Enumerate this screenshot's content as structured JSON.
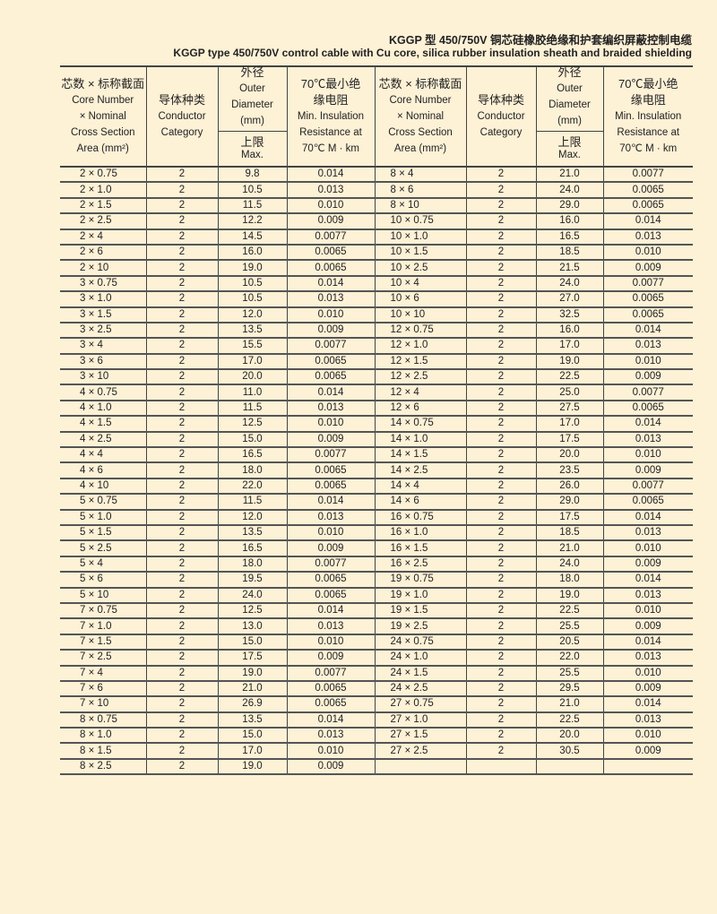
{
  "title_cn": "KGGP 型 450/750V 铜芯硅橡胶绝缘和护套编织屏蔽控制电缆",
  "title_en": "KGGP type 450/750V control cable with Cu core, silica rubber insulation sheath and braided shielding",
  "header": {
    "spec_cn": "芯数 × 标称截面",
    "spec_en_1": "Core Number",
    "spec_en_2": "× Nominal",
    "spec_en_3": "Cross Section",
    "spec_en_4": "Area (mm²)",
    "conductor_cn": "导体种类",
    "conductor_en_1": "Conductor",
    "conductor_en_2": "Category",
    "dia_cn": "外径",
    "dia_en_1": "Outer",
    "dia_en_2": "Diameter",
    "dia_unit": "(mm)",
    "dia_max_cn": "上限",
    "dia_max_en": "Max.",
    "res_cn_1": "70℃最小绝",
    "res_cn_2": "缘电阻",
    "res_en_1": "Min. Insulation",
    "res_en_2": "Resistance at",
    "res_en_3": "70℃  M  · km"
  },
  "rows": [
    [
      "2 × 0.75",
      "2",
      "9.8",
      "0.014",
      "8 × 4",
      "2",
      "21.0",
      "0.0077"
    ],
    [
      "2 × 1.0",
      "2",
      "10.5",
      "0.013",
      "8 × 6",
      "2",
      "24.0",
      "0.0065"
    ],
    [
      "2 × 1.5",
      "2",
      "11.5",
      "0.010",
      "8 × 10",
      "2",
      "29.0",
      "0.0065"
    ],
    [
      "2 × 2.5",
      "2",
      "12.2",
      "0.009",
      "10 × 0.75",
      "2",
      "16.0",
      "0.014"
    ],
    [
      "2 × 4",
      "2",
      "14.5",
      "0.0077",
      "10 × 1.0",
      "2",
      "16.5",
      "0.013"
    ],
    [
      "2 × 6",
      "2",
      "16.0",
      "0.0065",
      "10 × 1.5",
      "2",
      "18.5",
      "0.010"
    ],
    [
      "2 × 10",
      "2",
      "19.0",
      "0.0065",
      "10 × 2.5",
      "2",
      "21.5",
      "0.009"
    ],
    [
      "3 × 0.75",
      "2",
      "10.5",
      "0.014",
      "10 × 4",
      "2",
      "24.0",
      "0.0077"
    ],
    [
      "3 × 1.0",
      "2",
      "10.5",
      "0.013",
      "10 × 6",
      "2",
      "27.0",
      "0.0065"
    ],
    [
      "3 × 1.5",
      "2",
      "12.0",
      "0.010",
      "10 × 10",
      "2",
      "32.5",
      "0.0065"
    ],
    [
      "3 × 2.5",
      "2",
      "13.5",
      "0.009",
      "12 × 0.75",
      "2",
      "16.0",
      "0.014"
    ],
    [
      "3 × 4",
      "2",
      "15.5",
      "0.0077",
      "12 × 1.0",
      "2",
      "17.0",
      "0.013"
    ],
    [
      "3 × 6",
      "2",
      "17.0",
      "0.0065",
      "12 × 1.5",
      "2",
      "19.0",
      "0.010"
    ],
    [
      "3 × 10",
      "2",
      "20.0",
      "0.0065",
      "12 × 2.5",
      "2",
      "22.5",
      "0.009"
    ],
    [
      "4 × 0.75",
      "2",
      "11.0",
      "0.014",
      "12 × 4",
      "2",
      "25.0",
      "0.0077"
    ],
    [
      "4 × 1.0",
      "2",
      "11.5",
      "0.013",
      "12 × 6",
      "2",
      "27.5",
      "0.0065"
    ],
    [
      "4 × 1.5",
      "2",
      "12.5",
      "0.010",
      "14 × 0.75",
      "2",
      "17.0",
      "0.014"
    ],
    [
      "4 × 2.5",
      "2",
      "15.0",
      "0.009",
      "14 × 1.0",
      "2",
      "17.5",
      "0.013"
    ],
    [
      "4 × 4",
      "2",
      "16.5",
      "0.0077",
      "14 × 1.5",
      "2",
      "20.0",
      "0.010"
    ],
    [
      "4 × 6",
      "2",
      "18.0",
      "0.0065",
      "14 × 2.5",
      "2",
      "23.5",
      "0.009"
    ],
    [
      "4 × 10",
      "2",
      "22.0",
      "0.0065",
      "14 × 4",
      "2",
      "26.0",
      "0.0077"
    ],
    [
      "5 × 0.75",
      "2",
      "11.5",
      "0.014",
      "14 × 6",
      "2",
      "29.0",
      "0.0065"
    ],
    [
      "5 × 1.0",
      "2",
      "12.0",
      "0.013",
      "16 × 0.75",
      "2",
      "17.5",
      "0.014"
    ],
    [
      "5 × 1.5",
      "2",
      "13.5",
      "0.010",
      "16 × 1.0",
      "2",
      "18.5",
      "0.013"
    ],
    [
      "5 × 2.5",
      "2",
      "16.5",
      "0.009",
      "16 × 1.5",
      "2",
      "21.0",
      "0.010"
    ],
    [
      "5 × 4",
      "2",
      "18.0",
      "0.0077",
      "16 × 2.5",
      "2",
      "24.0",
      "0.009"
    ],
    [
      "5 × 6",
      "2",
      "19.5",
      "0.0065",
      "19 × 0.75",
      "2",
      "18.0",
      "0.014"
    ],
    [
      "5 × 10",
      "2",
      "24.0",
      "0.0065",
      "19 × 1.0",
      "2",
      "19.0",
      "0.013"
    ],
    [
      "7 × 0.75",
      "2",
      "12.5",
      "0.014",
      "19 × 1.5",
      "2",
      "22.5",
      "0.010"
    ],
    [
      "7 × 1.0",
      "2",
      "13.0",
      "0.013",
      "19 × 2.5",
      "2",
      "25.5",
      "0.009"
    ],
    [
      "7 × 1.5",
      "2",
      "15.0",
      "0.010",
      "24 × 0.75",
      "2",
      "20.5",
      "0.014"
    ],
    [
      "7 × 2.5",
      "2",
      "17.5",
      "0.009",
      "24 × 1.0",
      "2",
      "22.0",
      "0.013"
    ],
    [
      "7 × 4",
      "2",
      "19.0",
      "0.0077",
      "24 × 1.5",
      "2",
      "25.5",
      "0.010"
    ],
    [
      "7 × 6",
      "2",
      "21.0",
      "0.0065",
      "24 × 2.5",
      "2",
      "29.5",
      "0.009"
    ],
    [
      "7 × 10",
      "2",
      "26.9",
      "0.0065",
      "27 × 0.75",
      "2",
      "21.0",
      "0.014"
    ],
    [
      "8 × 0.75",
      "2",
      "13.5",
      "0.014",
      "27 × 1.0",
      "2",
      "22.5",
      "0.013"
    ],
    [
      "8 × 1.0",
      "2",
      "15.0",
      "0.013",
      "27 × 1.5",
      "2",
      "20.0",
      "0.010"
    ],
    [
      "8 × 1.5",
      "2",
      "17.0",
      "0.010",
      "27 × 2.5",
      "2",
      "30.5",
      "0.009"
    ],
    [
      "8 × 2.5",
      "2",
      "19.0",
      "0.009",
      "",
      "",
      "",
      ""
    ]
  ]
}
